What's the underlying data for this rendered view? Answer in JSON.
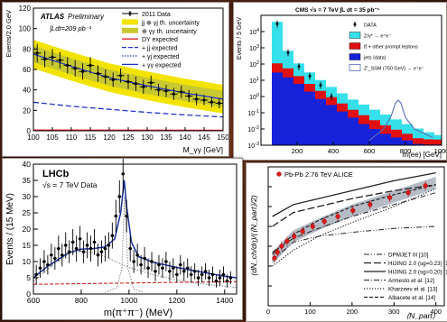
{
  "chart_data": [
    {
      "type": "line",
      "experiment": "ATLAS",
      "experiment_tag": "Preliminary",
      "lumi_text": "∫Ldt=209 pb⁻¹",
      "xlabel": "M_γγ [GeV]",
      "ylabel": "Events/2.0 GeV",
      "xlim": [
        100,
        150
      ],
      "ylim": [
        0,
        120
      ],
      "xticks": [
        100,
        105,
        110,
        115,
        120,
        125,
        130,
        135,
        140,
        145,
        150
      ],
      "yticks": [
        0,
        20,
        40,
        60,
        80,
        100,
        120
      ],
      "legend": [
        {
          "label": "2011 Data",
          "style": "data"
        },
        {
          "label": "jj ⊕ γj th. uncertainty",
          "style": "band",
          "color": "#f2e400"
        },
        {
          "label": "⊕ γγ th. uncertainty",
          "style": "band",
          "color": "#c8c830"
        },
        {
          "label": "DY expected",
          "style": "line",
          "color": "#e0202b"
        },
        {
          "label": "+ jj expected",
          "style": "dash",
          "color": "#2233cc"
        },
        {
          "label": "+ γj expected",
          "style": "dot",
          "color": "#2233cc"
        },
        {
          "label": "+ γγ expected",
          "style": "line",
          "color": "#2233cc"
        }
      ],
      "data_x": [
        101,
        103,
        105,
        107,
        109,
        111,
        113,
        115,
        117,
        119,
        121,
        123,
        125,
        127,
        129,
        131,
        133,
        135,
        137,
        139,
        141,
        143,
        145,
        147,
        149
      ],
      "data_y": [
        76,
        70,
        72,
        69,
        64,
        61,
        58,
        64,
        56,
        53,
        50,
        54,
        48,
        46,
        43,
        47,
        40,
        39,
        36,
        38,
        34,
        31,
        30,
        28,
        27
      ],
      "data_err": [
        9,
        8,
        8,
        8,
        8,
        8,
        8,
        8,
        8,
        7,
        7,
        7,
        7,
        7,
        7,
        7,
        6,
        6,
        6,
        6,
        6,
        6,
        5,
        5,
        5
      ],
      "band_center": [
        [
          100,
          75
        ],
        [
          110,
          63
        ],
        [
          120,
          52
        ],
        [
          130,
          44
        ],
        [
          140,
          37
        ],
        [
          150,
          31
        ]
      ],
      "band_halfwidth_outer": 14,
      "band_halfwidth_inner": 8,
      "gg_curve": [
        [
          100,
          28
        ],
        [
          110,
          24
        ],
        [
          120,
          21
        ],
        [
          130,
          18
        ],
        [
          140,
          15.5
        ],
        [
          150,
          13.5
        ]
      ],
      "dy_curve": [
        [
          100,
          0.8
        ],
        [
          150,
          0.6
        ]
      ]
    },
    {
      "type": "histogram",
      "header": "CMS  √s = 7 TeV  ∫L dt = 35 pb⁻¹",
      "xlabel": "m(ee) [GeV]",
      "ylabel": "Events / 5 GeV",
      "xlim": [
        0,
        1000
      ],
      "ylog": true,
      "ylim": [
        0.001,
        100000
      ],
      "xticks": [
        200,
        400,
        600,
        800,
        1000
      ],
      "yticks_exp": [
        -3,
        -2,
        -1,
        0,
        1,
        2,
        3,
        4
      ],
      "legend": [
        {
          "label": "DATA",
          "style": "data"
        },
        {
          "label": "Z/γ* → e⁺e⁻",
          "style": "fill",
          "color": "#36e0ea"
        },
        {
          "label": "tt̄ + other prompt leptons",
          "style": "fill",
          "color": "#e01010"
        },
        {
          "label": "jets (data)",
          "style": "fill",
          "color": "#1622d8"
        },
        {
          "label": "Z'_SSM (750 GeV) → e⁺e⁻",
          "style": "outline",
          "color": "#5870b8"
        }
      ],
      "edges": [
        60,
        120,
        180,
        240,
        300,
        360,
        420,
        480,
        540,
        600,
        660,
        720,
        780,
        840,
        900,
        960,
        1000
      ],
      "z_values": [
        40000,
        600,
        90,
        25,
        8,
        3,
        1.2,
        0.5,
        0.25,
        0.12,
        0.06,
        0.03,
        0.015,
        0.008,
        0.004,
        0.002
      ],
      "tt_values": [
        80,
        40,
        12,
        4,
        1.5,
        0.6,
        0.25,
        0.1,
        0.05,
        0.025,
        0.012,
        0.006,
        0.003,
        0.0015,
        0.0012,
        0.0011
      ],
      "jets_values": [
        30,
        15,
        6,
        2,
        0.7,
        0.3,
        0.12,
        0.05,
        0.02,
        0.01,
        0.005,
        0.003,
        0.002,
        0.0012,
        0.0011,
        0.0011
      ],
      "data_x": [
        90,
        150,
        210,
        270,
        330,
        390
      ],
      "data_y": [
        30000,
        500,
        70,
        18,
        5,
        1
      ],
      "zprime_curve": [
        [
          600,
          0.002
        ],
        [
          680,
          0.01
        ],
        [
          720,
          0.06
        ],
        [
          745,
          0.4
        ],
        [
          760,
          0.6
        ],
        [
          775,
          0.4
        ],
        [
          800,
          0.05
        ],
        [
          850,
          0.01
        ],
        [
          950,
          0.003
        ]
      ]
    },
    {
      "type": "line",
      "experiment": "LHCb",
      "energy_text": "√s = 7 TeV Data",
      "xlabel": "m(π⁺π⁻) (MeV)",
      "ylabel": "Events / (15 MeV)",
      "xlim": [
        600,
        1450
      ],
      "ylim": [
        0,
        40
      ],
      "xticks": [
        600,
        800,
        1000,
        1200,
        1400
      ],
      "yticks": [
        0,
        5,
        10,
        15,
        20,
        25,
        30,
        35,
        40
      ],
      "data_x": [
        612,
        628,
        645,
        660,
        675,
        690,
        705,
        720,
        735,
        750,
        765,
        780,
        795,
        810,
        825,
        840,
        855,
        870,
        885,
        900,
        915,
        930,
        945,
        960,
        975,
        990,
        1005,
        1020,
        1035,
        1050,
        1065,
        1080,
        1095,
        1110,
        1125,
        1140,
        1155,
        1170,
        1185,
        1200,
        1215,
        1230,
        1245,
        1260,
        1275,
        1290,
        1305,
        1320,
        1335,
        1350,
        1365,
        1380,
        1395,
        1410,
        1425
      ],
      "data_y": [
        6,
        8,
        10,
        9,
        12,
        11,
        14,
        12,
        15,
        13,
        16,
        14,
        17,
        13,
        15,
        14,
        16,
        12,
        13,
        14,
        15,
        18,
        24,
        30,
        37,
        24,
        14,
        10,
        12,
        9,
        11,
        8,
        10,
        7,
        9,
        8,
        10,
        7,
        8,
        6,
        9,
        7,
        8,
        6,
        7,
        5,
        6,
        7,
        5,
        6,
        4,
        5,
        6,
        4,
        5
      ],
      "data_err": [
        3,
        3,
        3.5,
        3,
        3.5,
        3.5,
        4,
        3.5,
        4,
        3.5,
        4,
        4,
        4,
        3.5,
        4,
        4,
        4,
        3.5,
        3.5,
        4,
        4,
        4,
        5,
        5,
        6,
        5,
        4,
        3.5,
        3.5,
        3,
        3.5,
        3,
        3,
        3,
        3,
        3,
        3,
        3,
        3,
        2.5,
        3,
        3,
        3,
        2.5,
        2.5,
        2.5,
        2.5,
        2.5,
        2.5,
        2.5,
        2,
        2.5,
        2.5,
        2,
        2
      ],
      "fit_curve": [
        [
          600,
          5
        ],
        [
          650,
          8
        ],
        [
          700,
          10.5
        ],
        [
          750,
          12.8
        ],
        [
          800,
          13.8
        ],
        [
          850,
          14
        ],
        [
          900,
          14.5
        ],
        [
          940,
          17
        ],
        [
          965,
          25
        ],
        [
          980,
          35
        ],
        [
          990,
          27
        ],
        [
          1010,
          16
        ],
        [
          1040,
          11.5
        ],
        [
          1100,
          9.8
        ],
        [
          1200,
          8.2
        ],
        [
          1300,
          6.8
        ],
        [
          1400,
          5.5
        ],
        [
          1450,
          5
        ]
      ],
      "rho_curve": [
        [
          600,
          4
        ],
        [
          650,
          7
        ],
        [
          700,
          10
        ],
        [
          750,
          12.5
        ],
        [
          800,
          13.2
        ],
        [
          850,
          12.8
        ],
        [
          900,
          11.5
        ],
        [
          950,
          9.8
        ],
        [
          1000,
          8.2
        ],
        [
          1100,
          6
        ],
        [
          1200,
          4.3
        ],
        [
          1300,
          3.2
        ],
        [
          1400,
          2.4
        ],
        [
          1450,
          2
        ]
      ],
      "omega_curve": [
        [
          900,
          0.5
        ],
        [
          950,
          2
        ],
        [
          970,
          8
        ],
        [
          982,
          30
        ],
        [
          995,
          8
        ],
        [
          1020,
          1.5
        ],
        [
          1060,
          0.5
        ]
      ],
      "bkg_curve": [
        [
          600,
          3
        ],
        [
          800,
          3.2
        ],
        [
          1000,
          3.4
        ],
        [
          1200,
          3.6
        ],
        [
          1450,
          3.8
        ]
      ]
    },
    {
      "type": "scatter",
      "title": "Pb-Pb 2.76 TeV ALICE",
      "ylabel": "(dN_ch/dη)/(⟨N_part⟩/2)",
      "xlabel": "⟨N_part⟩",
      "xlim": [
        0,
        420
      ],
      "ylim": [
        2,
        9
      ],
      "xticks": [
        0,
        100,
        200,
        300,
        400
      ],
      "yticks": [
        2,
        3,
        4,
        5,
        6,
        7,
        8
      ],
      "legend": [
        {
          "label": "DPMJET III [10]",
          "style": "dashdotdot"
        },
        {
          "label": "HIJING 2.0 (sg=0.23) [11]",
          "style": "longdash"
        },
        {
          "label": "HIJING 2.0 (sg=0.20) [11]",
          "style": "solid"
        },
        {
          "label": "Armesto et al. [12]",
          "style": "dashdot"
        },
        {
          "label": "Kharzeev et al. [13]",
          "style": "dotdot"
        },
        {
          "label": "Albacete et al. [14]",
          "style": "dashed"
        }
      ],
      "alice_x": [
        15,
        22,
        32,
        45,
        62,
        82,
        106,
        134,
        166,
        202,
        243,
        290,
        334,
        375
      ],
      "alice_y": [
        4.4,
        4.7,
        5.0,
        5.25,
        5.5,
        5.75,
        6.0,
        6.25,
        6.5,
        6.8,
        7.1,
        7.45,
        7.7,
        8.05
      ],
      "band_center": [
        [
          10,
          4.4
        ],
        [
          60,
          5.5
        ],
        [
          120,
          6.1
        ],
        [
          200,
          6.8
        ],
        [
          300,
          7.5
        ],
        [
          400,
          8.2
        ]
      ],
      "band_half": 0.3,
      "model_curves": [
        [
          [
            10,
            4.3
          ],
          [
            60,
            5.2
          ],
          [
            120,
            5.5
          ],
          [
            200,
            5.7
          ],
          [
            300,
            5.9
          ],
          [
            400,
            6.0
          ]
        ],
        [
          [
            10,
            6.0
          ],
          [
            60,
            6.7
          ],
          [
            120,
            7.0
          ],
          [
            200,
            7.4
          ],
          [
            300,
            7.8
          ],
          [
            400,
            8.1
          ]
        ],
        [
          [
            10,
            6.5
          ],
          [
            60,
            7.1
          ],
          [
            120,
            7.4
          ],
          [
            200,
            7.8
          ],
          [
            300,
            8.3
          ],
          [
            400,
            8.7
          ]
        ],
        [
          [
            10,
            4.7
          ],
          [
            60,
            5.4
          ],
          [
            120,
            5.9
          ],
          [
            200,
            6.5
          ],
          [
            300,
            7.1
          ],
          [
            400,
            7.7
          ]
        ],
        [
          [
            10,
            4.0
          ],
          [
            60,
            4.8
          ],
          [
            120,
            5.5
          ],
          [
            200,
            6.2
          ],
          [
            300,
            7.0
          ],
          [
            400,
            7.9
          ]
        ],
        [
          [
            10,
            4.6
          ],
          [
            60,
            5.6
          ],
          [
            120,
            6.3
          ],
          [
            200,
            7.0
          ],
          [
            300,
            7.6
          ],
          [
            400,
            8.1
          ]
        ]
      ]
    }
  ]
}
